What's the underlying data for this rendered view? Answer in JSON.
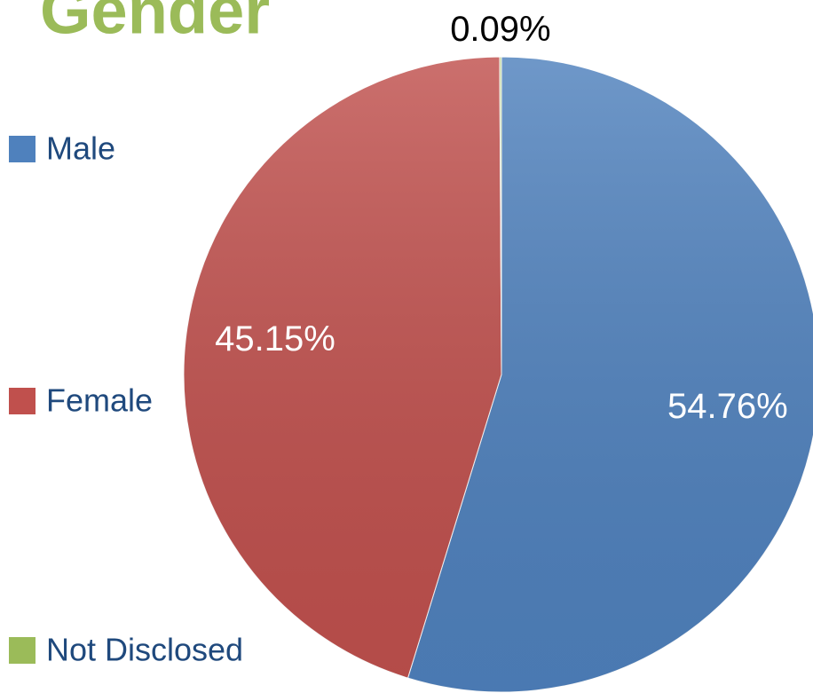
{
  "chart_data": {
    "type": "pie",
    "title": "Gender",
    "categories": [
      "Male",
      "Female",
      "Not Disclosed"
    ],
    "values": [
      54.76,
      45.15,
      0.09
    ],
    "value_labels": [
      "54.76%",
      "45.15%",
      "0.09%"
    ],
    "colors": [
      "#4f81bd",
      "#c0504d",
      "#9bbb59"
    ],
    "legend": "left"
  }
}
